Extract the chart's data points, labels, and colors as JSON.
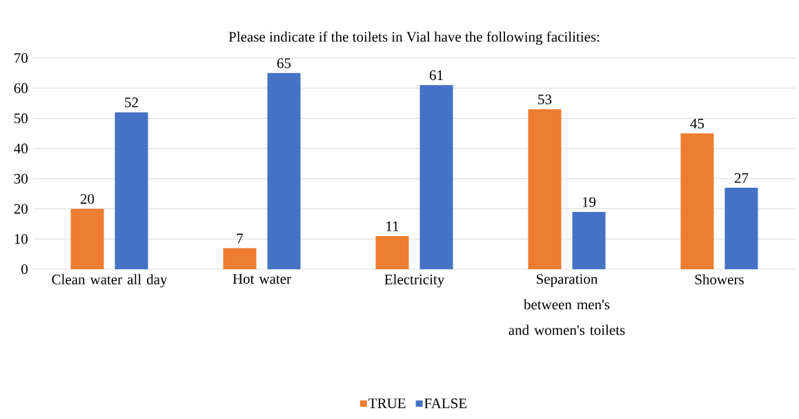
{
  "chart_data": {
    "type": "bar",
    "title": "Please indicate if the toilets in Vial have the following facilities:",
    "categories": [
      "Clean water all day",
      "Hot water",
      "Electricity",
      "Separation between men's and women's toilets",
      "Showers"
    ],
    "series": [
      {
        "name": "TRUE",
        "color": "#ed7d31",
        "values": [
          20,
          7,
          11,
          53,
          45
        ]
      },
      {
        "name": "FALSE",
        "color": "#4472c4",
        "values": [
          52,
          65,
          61,
          19,
          27
        ]
      }
    ],
    "ylim": [
      0,
      70
    ],
    "yticks": [
      0,
      10,
      20,
      30,
      40,
      50,
      60,
      70
    ],
    "grid": "y",
    "legend": "bottom",
    "data_labels": true
  }
}
